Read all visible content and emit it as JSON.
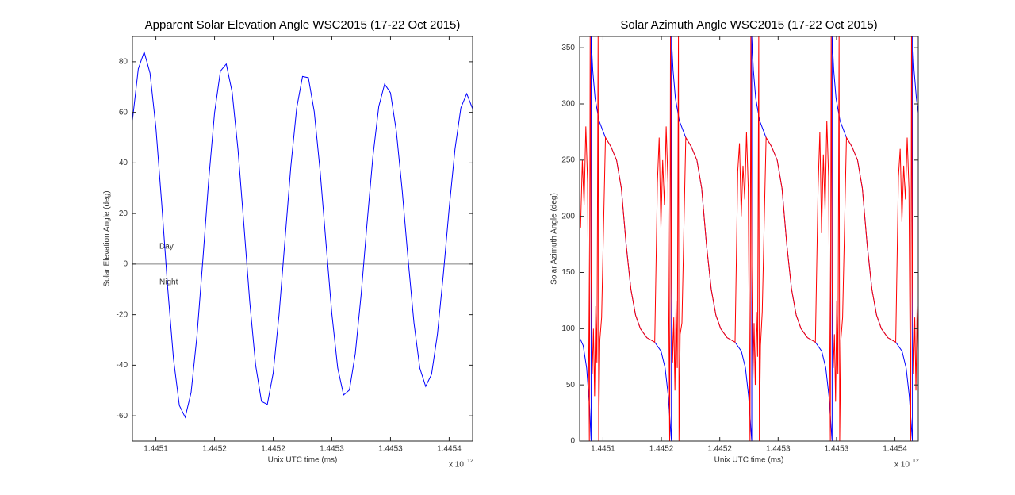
{
  "chart_data": [
    {
      "type": "line",
      "title": "Apparent Solar Elevation Angle WSC2015 (17-22 Oct 2015)",
      "x_label": "Unix UTC time (ms)",
      "y_label": "Solar Elevation Angle (deg)",
      "x_multiplier_base": "x 10",
      "x_multiplier_exponent": "12",
      "xlim": [
        1445080000000,
        1445370000000
      ],
      "xticks": [
        {
          "value": 1445100000000,
          "label": "1.4451"
        },
        {
          "value": 1445150000000,
          "label": "1.4452"
        },
        {
          "value": 1445200000000,
          "label": "1.4452"
        },
        {
          "value": 1445250000000,
          "label": "1.4453"
        },
        {
          "value": 1445300000000,
          "label": "1.4453"
        },
        {
          "value": 1445350000000,
          "label": "1.4454"
        }
      ],
      "ylim": [
        -70,
        90
      ],
      "yticks": [
        -60,
        -40,
        -20,
        0,
        20,
        40,
        60,
        80
      ],
      "reference_lines": [
        0
      ],
      "reference_color": "#808080",
      "annotations": [
        "Day",
        "Night"
      ],
      "series": [
        {
          "color": "#0000ff",
          "x": [
            1445080000000,
            1445085000000,
            1445090000000,
            1445095000000,
            1445100000000,
            1445105000000,
            1445110000000,
            1445115000000,
            1445120000000,
            1445125000000,
            1445130000000,
            1445135000000,
            1445140000000,
            1445145000000,
            1445150000000,
            1445155000000,
            1445160000000,
            1445165000000,
            1445170000000,
            1445175000000,
            1445180000000,
            1445185000000,
            1445190000000,
            1445195000000,
            1445200000000,
            1445205000000,
            1445210000000,
            1445215000000,
            1445220000000,
            1445225000000,
            1445230000000,
            1445235000000,
            1445240000000,
            1445245000000,
            1445250000000,
            1445255000000,
            1445260000000,
            1445265000000,
            1445270000000,
            1445275000000,
            1445280000000,
            1445285000000,
            1445290000000,
            1445295000000,
            1445300000000,
            1445305000000,
            1445310000000,
            1445315000000,
            1445320000000,
            1445325000000,
            1445330000000,
            1445335000000,
            1445340000000,
            1445345000000,
            1445350000000,
            1445355000000,
            1445360000000,
            1445365000000,
            1445370000000
          ],
          "values": [
            56.8,
            77.2,
            83.9,
            75.5,
            54.0,
            23.7,
            -9.0,
            -37.5,
            -55.9,
            -60.6,
            -50.8,
            -28.5,
            1.5,
            33.1,
            59.8,
            76.3,
            79.1,
            68.0,
            45.2,
            15.6,
            -14.9,
            -39.9,
            -54.3,
            -55.5,
            -43.1,
            -20.0,
            9.2,
            38.4,
            61.6,
            74.2,
            73.7,
            60.3,
            36.8,
            8.3,
            -19.6,
            -41.1,
            -51.8,
            -49.8,
            -35.4,
            -11.9,
            16.0,
            42.5,
            62.3,
            71.2,
            67.7,
            52.5,
            29.0,
            1.9,
            -23.2,
            -41.2,
            -48.4,
            -43.6,
            -27.8,
            -4.3,
            21.9,
            45.5,
            61.8,
            67.4,
            61.4
          ]
        }
      ]
    },
    {
      "type": "line",
      "title": "Solar Azimuth Angle WSC2015 (17-22 Oct 2015)",
      "x_label": "Unix UTC time (ms)",
      "y_label": "Solar Azimuth Angle (deg)",
      "x_multiplier_base": "x 10",
      "x_multiplier_exponent": "12",
      "xlim": [
        1445080000000,
        1445370000000
      ],
      "xticks": [
        {
          "value": 1445100000000,
          "label": "1.4451"
        },
        {
          "value": 1445150000000,
          "label": "1.4452"
        },
        {
          "value": 1445200000000,
          "label": "1.4452"
        },
        {
          "value": 1445250000000,
          "label": "1.4453"
        },
        {
          "value": 1445300000000,
          "label": "1.4453"
        },
        {
          "value": 1445350000000,
          "label": "1.4454"
        }
      ],
      "ylim": [
        0,
        360
      ],
      "yticks": [
        0,
        50,
        100,
        150,
        200,
        250,
        300,
        350
      ],
      "series": [
        {
          "color": "#0000ff",
          "x": [
            1445080000000,
            1445083000000,
            1445086000000,
            1445088500000,
            1445089800000,
            1445089800000,
            1445091200000,
            1445093200000,
            1445096600000,
            1445102100000,
            1445106800000,
            1445111600000,
            1445115700000,
            1445119800000,
            1445123900000,
            1445127900000,
            1445132000000,
            1445137500000,
            1445144300000,
            1445149700000,
            1445153200000,
            1445155900000,
            1445157900000,
            1445158600000,
            1445158600000,
            1445160000000,
            1445162000000,
            1445165400000,
            1445170900000,
            1445175600000,
            1445180400000,
            1445184500000,
            1445188600000,
            1445192700000,
            1445196700000,
            1445200800000,
            1445206300000,
            1445213100000,
            1445218500000,
            1445222000000,
            1445224700000,
            1445226700000,
            1445227400000,
            1445227400000,
            1445228800000,
            1445230800000,
            1445234200000,
            1445239700000,
            1445244400000,
            1445249200000,
            1445253300000,
            1445257400000,
            1445261500000,
            1445265500000,
            1445269600000,
            1445275100000,
            1445281900000,
            1445287300000,
            1445290800000,
            1445293500000,
            1445295500000,
            1445296200000,
            1445296200000,
            1445297600000,
            1445299600000,
            1445303000000,
            1445308500000,
            1445313200000,
            1445318000000,
            1445322100000,
            1445326200000,
            1445330300000,
            1445334300000,
            1445338400000,
            1445343900000,
            1445350700000,
            1445356100000,
            1445359600000,
            1445362300000,
            1445364300000,
            1445365000000,
            1445365000000,
            1445366400000,
            1445368400000,
            1445370000000
          ],
          "values": [
            92,
            85,
            65,
            30,
            0,
            360,
            330,
            305,
            285,
            270,
            262,
            250,
            225,
            175,
            135,
            112,
            100,
            92,
            88,
            80,
            65,
            40,
            10,
            0,
            360,
            330,
            305,
            285,
            270,
            262,
            250,
            225,
            175,
            135,
            112,
            100,
            92,
            88,
            80,
            65,
            40,
            10,
            0,
            360,
            330,
            305,
            285,
            270,
            262,
            250,
            225,
            175,
            135,
            112,
            100,
            92,
            88,
            80,
            65,
            40,
            10,
            0,
            360,
            330,
            305,
            285,
            270,
            262,
            250,
            225,
            175,
            135,
            112,
            100,
            92,
            88,
            80,
            65,
            40,
            10,
            0,
            360,
            330,
            305,
            292
          ]
        },
        {
          "color": "#ff0000",
          "x": [
            1445080800000,
            1445082300000,
            1445083800000,
            1445085300000,
            1445086800000,
            1445088300000,
            1445089000000,
            1445089800000,
            1445090800000,
            1445091800000,
            1445092800000,
            1445093800000,
            1445094800000,
            1445095800000,
            1445096300000,
            1445097300000,
            1445098800000,
            1445102100000,
            1445106800000,
            1445111600000,
            1445115700000,
            1445119800000,
            1445123900000,
            1445127900000,
            1445132000000,
            1445137500000,
            1445144300000,
            1445146600000,
            1445148100000,
            1445149600000,
            1445151100000,
            1445152600000,
            1445154100000,
            1445155600000,
            1445157100000,
            1445157800000,
            1445158600000,
            1445159600000,
            1445160600000,
            1445161600000,
            1445162600000,
            1445163600000,
            1445164600000,
            1445165100000,
            1445166100000,
            1445167600000,
            1445170900000,
            1445175600000,
            1445180400000,
            1445184500000,
            1445188600000,
            1445192700000,
            1445196700000,
            1445200800000,
            1445206300000,
            1445213100000,
            1445215400000,
            1445216900000,
            1445218400000,
            1445219900000,
            1445221400000,
            1445222900000,
            1445224400000,
            1445225900000,
            1445226600000,
            1445227400000,
            1445228400000,
            1445229400000,
            1445230400000,
            1445231400000,
            1445232400000,
            1445233400000,
            1445233900000,
            1445234900000,
            1445236400000,
            1445239700000,
            1445244400000,
            1445249200000,
            1445253300000,
            1445257400000,
            1445261500000,
            1445265500000,
            1445269600000,
            1445275100000,
            1445281900000,
            1445284200000,
            1445285700000,
            1445287200000,
            1445288700000,
            1445290200000,
            1445291700000,
            1445293200000,
            1445294700000,
            1445295400000,
            1445296200000,
            1445297200000,
            1445298200000,
            1445299200000,
            1445300200000,
            1445301200000,
            1445302200000,
            1445302700000,
            1445303700000,
            1445305200000,
            1445308500000,
            1445313200000,
            1445318000000,
            1445322100000,
            1445326200000,
            1445330300000,
            1445334300000,
            1445338400000,
            1445343900000,
            1445350700000,
            1445353000000,
            1445354500000,
            1445356000000,
            1445357500000,
            1445359000000,
            1445360500000,
            1445362000000,
            1445363500000,
            1445364200000,
            1445365000000,
            1445366000000,
            1445367000000,
            1445368000000,
            1445369000000,
            1445370000000
          ],
          "values": [
            190,
            250,
            210,
            280,
            230,
            0,
            360,
            150,
            60,
            100,
            40,
            120,
            70,
            360,
            0,
            90,
            110,
            270,
            262,
            250,
            225,
            175,
            135,
            112,
            100,
            92,
            88,
            230,
            270,
            190,
            250,
            210,
            280,
            230,
            0,
            360,
            140,
            70,
            110,
            45,
            125,
            65,
            360,
            0,
            95,
            105,
            270,
            262,
            250,
            225,
            175,
            135,
            112,
            100,
            92,
            88,
            240,
            265,
            200,
            245,
            215,
            275,
            225,
            0,
            360,
            155,
            55,
            105,
            50,
            115,
            75,
            360,
            0,
            85,
            115,
            270,
            262,
            250,
            225,
            175,
            135,
            112,
            100,
            92,
            88,
            225,
            275,
            185,
            255,
            205,
            285,
            235,
            0,
            360,
            145,
            65,
            95,
            35,
            125,
            60,
            360,
            0,
            90,
            110,
            270,
            262,
            250,
            225,
            175,
            135,
            112,
            100,
            92,
            88,
            235,
            260,
            195,
            245,
            215,
            270,
            225,
            0,
            360,
            140,
            60,
            110,
            45,
            120,
            80
          ]
        }
      ]
    }
  ]
}
